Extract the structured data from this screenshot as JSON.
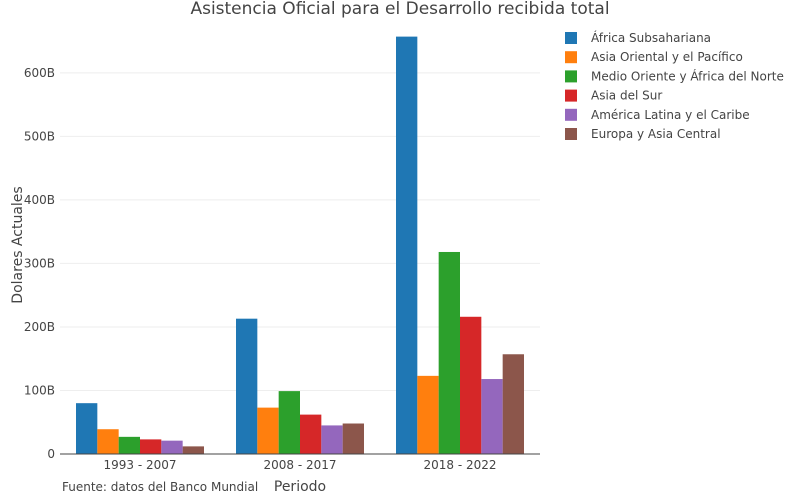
{
  "chart_data": {
    "type": "bar",
    "title": "Asistencia Oficial para el Desarrollo recibida total",
    "xlabel": "Periodo",
    "ylabel": "Dolares Actuales",
    "categories": [
      "1993 - 2007",
      "2008 - 2017",
      "2018 - 2022"
    ],
    "ylim": [
      0,
      680
    ],
    "yticks": [
      0,
      100,
      200,
      300,
      400,
      500,
      600
    ],
    "ytick_labels": [
      "0",
      "100B",
      "200B",
      "300B",
      "400B",
      "500B",
      "600B"
    ],
    "grid": true,
    "legend_position": "top-right",
    "source": "Fuente: datos del Banco Mundial",
    "series": [
      {
        "name": "África Subsahariana",
        "color": "#1f77b4",
        "values": [
          80,
          213,
          657
        ]
      },
      {
        "name": "Asia Oriental y el Pacífico",
        "color": "#ff7f0e",
        "values": [
          39,
          73,
          123
        ]
      },
      {
        "name": "Medio Oriente y África del Norte",
        "color": "#2ca02c",
        "values": [
          27,
          99,
          318
        ]
      },
      {
        "name": "Asia del Sur",
        "color": "#d62728",
        "values": [
          23,
          62,
          216
        ]
      },
      {
        "name": "América Latina y el Caribe",
        "color": "#9467bd",
        "values": [
          21,
          45,
          118
        ]
      },
      {
        "name": "Europa y Asia Central",
        "color": "#8c564b",
        "values": [
          12,
          48,
          157
        ]
      }
    ]
  }
}
